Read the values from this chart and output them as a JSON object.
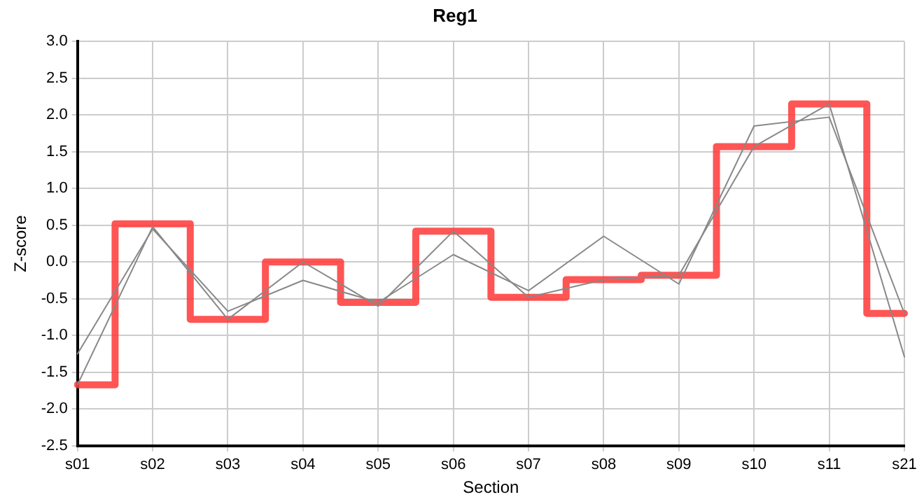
{
  "chart_data": {
    "type": "line",
    "title": "Reg1",
    "xlabel": "Section",
    "ylabel": "Z-score",
    "categories": [
      "s01",
      "s02",
      "s03",
      "s04",
      "s05",
      "s06",
      "s07",
      "s08",
      "s09",
      "s10",
      "s11",
      "s21"
    ],
    "series": [
      {
        "type": "line",
        "color": "#888888",
        "values": [
          -1.25,
          0.45,
          -0.67,
          -0.25,
          -0.55,
          0.1,
          -0.39,
          0.35,
          -0.3,
          1.85,
          1.97,
          -0.7
        ]
      },
      {
        "type": "line",
        "color": "#888888",
        "values": [
          -1.67,
          0.48,
          -0.78,
          0.0,
          -0.6,
          0.42,
          -0.48,
          -0.24,
          -0.18,
          1.57,
          2.15,
          -1.29
        ]
      },
      {
        "type": "step",
        "color": "#ff3b3b",
        "values": [
          -1.67,
          0.52,
          -0.78,
          0.0,
          -0.55,
          0.42,
          -0.48,
          -0.24,
          -0.18,
          1.57,
          2.15,
          -0.7
        ]
      }
    ],
    "ylim": [
      -2.5,
      3.0
    ],
    "yticks": [
      {
        "value": -2.5,
        "label": "-2.5"
      },
      {
        "value": -2,
        "label": "-2.0"
      },
      {
        "value": -1.5,
        "label": "-1.5"
      },
      {
        "value": -1,
        "label": "-1.0"
      },
      {
        "value": -0.5,
        "label": "-0.5"
      },
      {
        "value": 0,
        "label": "0.0"
      },
      {
        "value": 0.5,
        "label": "0.5"
      },
      {
        "value": 1,
        "label": "1.0"
      },
      {
        "value": 1.5,
        "label": "1.5"
      },
      {
        "value": 2,
        "label": "2.0"
      },
      {
        "value": 2.5,
        "label": "2.5"
      },
      {
        "value": 3,
        "label": "3.0"
      }
    ],
    "grid": true,
    "legend": false,
    "marker": "none",
    "line_style": "solid"
  }
}
